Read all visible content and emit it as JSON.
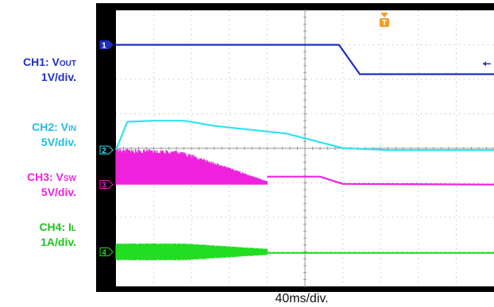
{
  "labels": {
    "ch1": {
      "name": "CH1: V",
      "sub": "OUT",
      "scale": "1V/div."
    },
    "ch2": {
      "name": "CH2: V",
      "sub": "IN",
      "scale": "5V/div."
    },
    "ch3": {
      "name": "CH3: V",
      "sub": "SW",
      "scale": "5V/div."
    },
    "ch4": {
      "name": "CH4: I",
      "sub": "L",
      "scale": "1A/div."
    },
    "timebase": "40ms/div."
  },
  "trigger_marker": "T",
  "colors": {
    "ch1": "#1f2fbf",
    "ch2": "#2ee3ee",
    "ch3": "#ee22dd",
    "ch4": "#22dd22",
    "screen_bg": "#ffffff",
    "frame": "#000000",
    "grid": "#b0b0b0",
    "trigger": "#f59a23"
  },
  "chart_data": {
    "type": "line",
    "xlabel": "40ms/div.",
    "x_divisions": 10,
    "y_divisions": 8,
    "series": [
      {
        "name": "CH1: VOUT",
        "channel": 1,
        "scale": "1V/div.",
        "points": [
          [
            0,
            0
          ],
          [
            5.9,
            0
          ],
          [
            6.45,
            -0.85
          ],
          [
            6.7,
            -0.85
          ],
          [
            10,
            -0.85
          ]
        ]
      },
      {
        "name": "CH2: VIN",
        "channel": 2,
        "scale": "5V/div.",
        "points": [
          [
            0,
            0
          ],
          [
            0.3,
            0.82
          ],
          [
            1.0,
            0.85
          ],
          [
            1.8,
            0.85
          ],
          [
            2.6,
            0.7
          ],
          [
            4.5,
            0.48
          ],
          [
            6.0,
            0.06
          ],
          [
            7.2,
            0
          ],
          [
            10,
            0
          ]
        ]
      },
      {
        "name": "CH3: VSW",
        "channel": 3,
        "scale": "5V/div.",
        "switching_envelope": [
          [
            0,
            1.05
          ],
          [
            1.7,
            1.0
          ],
          [
            4.0,
            0.1
          ]
        ],
        "points": [
          [
            4.0,
            0.23
          ],
          [
            5.4,
            0.23
          ],
          [
            6.0,
            0.02
          ],
          [
            10,
            0.0
          ]
        ]
      },
      {
        "name": "CH4: IL",
        "channel": 4,
        "scale": "1A/div.",
        "switching_envelope": [
          [
            0,
            0.5
          ],
          [
            1.8,
            0.5
          ],
          [
            4.0,
            0.18
          ]
        ],
        "points": [
          [
            4.0,
            -0.03
          ],
          [
            10,
            -0.03
          ]
        ]
      }
    ],
    "channel_markers": [
      "1",
      "2",
      "3",
      "4"
    ]
  }
}
